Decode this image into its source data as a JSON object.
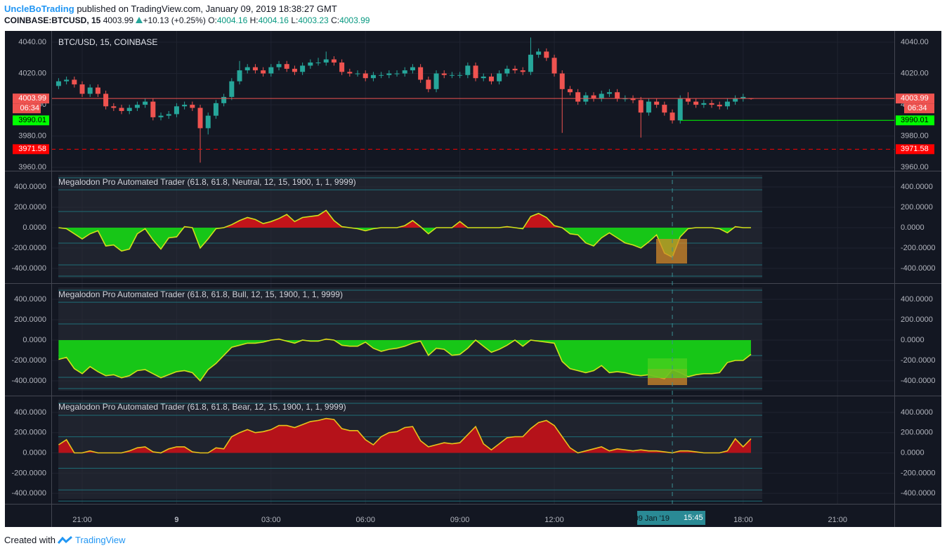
{
  "header": {
    "author": "UncleBoTrading",
    "published": "published on TradingView.com, January 09, 2019 18:38:27 GMT",
    "symbol": "COINBASE:BTCUSD, 15",
    "last": "4003.99",
    "change": "+10.13 (+0.25%)",
    "o_label": "O:",
    "o": "4004.16",
    "h_label": "H:",
    "h": "4004.16",
    "l_label": "L:",
    "l": "4003.23",
    "c_label": "C:",
    "c": "4003.99"
  },
  "footer": {
    "created": "Created with",
    "brand": "TradingView"
  },
  "chart_data": [
    {
      "type": "candlestick",
      "title": "BTC/USD, 15, COINBASE",
      "up_color": "#26a69a",
      "down_color": "#ef5350",
      "xlim": [
        -0.93,
        106.21
      ],
      "xticks": [
        {
          "value": 3,
          "label": "21:00"
        },
        {
          "value": 15,
          "label": "9"
        },
        {
          "value": 27,
          "label": "03:00"
        },
        {
          "value": 39,
          "label": "06:00"
        },
        {
          "value": 51,
          "label": "09:00"
        },
        {
          "value": 63,
          "label": "12:00"
        },
        {
          "value": 87,
          "label": "18:00"
        },
        {
          "value": 99,
          "label": "21:00"
        }
      ],
      "crosshair": {
        "date": "09 Jan '19",
        "time": "15:45"
      },
      "ylim": [
        3957.8,
        4047.2
      ],
      "yticks": [
        {
          "value": 3960,
          "label": "3960.00"
        },
        {
          "value": 3980,
          "label": "3980.00"
        },
        {
          "value": 4000,
          "label": "4000.00"
        },
        {
          "value": 4020,
          "label": "4020.00"
        },
        {
          "value": 4040,
          "label": "4040.00"
        }
      ],
      "countdown": "06:34",
      "price_lines": [
        {
          "value": 4003.99,
          "color": "#ef5350",
          "text_color": "#ffffff",
          "dashed": false
        },
        {
          "value": 3990.01,
          "color": "#00ff00",
          "text_color": "#000000",
          "dashed": false
        },
        {
          "value": 3971.58,
          "color": "#ff0000",
          "text_color": "#ffffff",
          "dashed": true
        }
      ],
      "open": [
        4012,
        4015,
        4016,
        4013,
        4007,
        4011,
        4007,
        3999,
        3998,
        3996,
        3998,
        4000,
        4002,
        3992,
        3993,
        3994,
        3999,
        4000,
        3998,
        3985,
        3993,
        4001,
        4005,
        4015,
        4022,
        4024,
        4022,
        4020,
        4024,
        4026,
        4023,
        4021,
        4025,
        4027,
        4027,
        4029,
        4027,
        4021,
        4020,
        4020,
        4017,
        4019,
        4019,
        4020,
        4020,
        4022,
        4024,
        4016,
        4010,
        4020,
        4019,
        4019,
        4019,
        4025,
        4017,
        4018,
        4015,
        4020,
        4023,
        4022,
        4021,
        4032,
        4034,
        4030,
        4020,
        4010,
        4008,
        4002,
        4006,
        4004,
        4007,
        4008,
        4004,
        4004,
        4003,
        3995,
        4002,
        4000,
        3995,
        3990,
        4004,
        4002,
        4000,
        4001,
        4000,
        3999,
        4002,
        4004,
        4004.16
      ],
      "high": [
        4017,
        4018,
        4018,
        4015,
        4013,
        4013,
        4009,
        4001,
        4000,
        4000,
        4002,
        4004,
        4004,
        3995,
        3996,
        4001,
        4002,
        4002,
        4000,
        3995,
        4003,
        4007,
        4017,
        4028,
        4026,
        4026,
        4024,
        4026,
        4028,
        4028,
        4025,
        4027,
        4029,
        4030,
        4034,
        4031,
        4029,
        4023,
        4022,
        4022,
        4021,
        4021,
        4022,
        4022,
        4024,
        4026,
        4026,
        4018,
        4022,
        4022,
        4021,
        4021,
        4027,
        4027,
        4020,
        4020,
        4022,
        4025,
        4025,
        4024,
        4043,
        4036,
        4036,
        4032,
        4022,
        4012,
        4010,
        4008,
        4008,
        4009,
        4010,
        4010,
        4006,
        4006,
        4005,
        4004,
        4004,
        4002,
        3997,
        4006,
        4008,
        4004,
        4003,
        4003,
        4002,
        4004,
        4006,
        4007,
        4004.16
      ],
      "low": [
        4010,
        4013,
        4011,
        4005,
        4005,
        4005,
        3997,
        3996,
        3994,
        3994,
        3996,
        3998,
        3990,
        3990,
        3991,
        3992,
        3997,
        3996,
        3963,
        3981,
        3991,
        3999,
        4003,
        4013,
        4020,
        4020,
        4018,
        4018,
        4022,
        4021,
        4019,
        4019,
        4023,
        4025,
        4025,
        4025,
        4019,
        4018,
        4018,
        4015,
        4015,
        4017,
        4017,
        4018,
        4018,
        4020,
        4014,
        4008,
        4008,
        4017,
        4017,
        4017,
        4017,
        4015,
        4015,
        4013,
        4013,
        4018,
        4020,
        4019,
        4019,
        4030,
        4028,
        4018,
        3982,
        4006,
        4000,
        4000,
        4002,
        4002,
        4005,
        4002,
        4002,
        4001,
        3979,
        3993,
        3998,
        3993,
        3988,
        3988,
        4000,
        3998,
        3998,
        3998,
        3997,
        3997,
        4000,
        4002,
        4003.23
      ],
      "close": [
        4015,
        4016,
        4013,
        4007,
        4011,
        4007,
        3999,
        3998,
        3996,
        3998,
        4000,
        4002,
        3992,
        3993,
        3994,
        3999,
        4000,
        3998,
        3985,
        3993,
        4001,
        4005,
        4015,
        4022,
        4024,
        4022,
        4020,
        4024,
        4026,
        4023,
        4021,
        4025,
        4027,
        4027,
        4029,
        4027,
        4021,
        4020,
        4020,
        4017,
        4019,
        4019,
        4020,
        4020,
        4022,
        4024,
        4016,
        4010,
        4020,
        4019,
        4019,
        4019,
        4025,
        4017,
        4018,
        4015,
        4020,
        4023,
        4022,
        4021,
        4032,
        4034,
        4030,
        4020,
        4010,
        4008,
        4002,
        4006,
        4004,
        4007,
        4008,
        4004,
        4004,
        4003,
        3995,
        4002,
        4000,
        3995,
        3990,
        4004,
        4002,
        4000,
        4001,
        4000,
        3999,
        4002,
        4004,
        4005,
        4003.99
      ]
    },
    {
      "type": "area",
      "title": "Megalodon Pro Automated Trader (61.8, 61.8, Neutral, 12, 15, 1900, 1, 1, 9999)",
      "line_color": "#cfe01a",
      "up_color": "#c3141a",
      "down_color": "#17c617",
      "level_color": "#1f6f78",
      "ylim": [
        -545,
        552
      ],
      "yticks": [
        {
          "value": -400,
          "label": "-400.0000"
        },
        {
          "value": -200,
          "label": "-200.0000"
        },
        {
          "value": 0,
          "label": "0.0000"
        },
        {
          "value": 200,
          "label": "200.0000"
        },
        {
          "value": 400,
          "label": "400.0000"
        }
      ],
      "levels": [
        490,
        372,
        159,
        -152,
        -366,
        -476
      ],
      "values": [
        0,
        -10,
        -60,
        -110,
        -60,
        -30,
        -180,
        -170,
        -230,
        -210,
        -60,
        -10,
        -120,
        -210,
        -100,
        -90,
        10,
        0,
        -200,
        -110,
        -10,
        0,
        30,
        70,
        100,
        80,
        40,
        60,
        90,
        130,
        60,
        100,
        110,
        120,
        170,
        70,
        10,
        0,
        -10,
        -30,
        -10,
        0,
        0,
        0,
        20,
        70,
        10,
        -60,
        0,
        0,
        0,
        60,
        0,
        0,
        0,
        0,
        0,
        10,
        0,
        -10,
        110,
        140,
        100,
        20,
        0,
        -60,
        -70,
        -150,
        -180,
        -100,
        -50,
        -100,
        -150,
        -170,
        -200,
        -140,
        -70,
        -250,
        -290,
        -90,
        -10,
        0,
        0,
        0,
        -10,
        -50,
        10,
        0,
        0
      ]
    },
    {
      "type": "area",
      "title": "Megalodon Pro Automated Trader (61.8, 61.8, Bull, 12, 15, 1900, 1, 1, 9999)",
      "line_color": "#cfe01a",
      "up_color": "#c3141a",
      "down_color": "#17c617",
      "level_color": "#1f6f78",
      "ylim": [
        -545,
        552
      ],
      "yticks": [
        {
          "value": -400,
          "label": "-400.0000"
        },
        {
          "value": -200,
          "label": "-200.0000"
        },
        {
          "value": 0,
          "label": "0.0000"
        },
        {
          "value": 200,
          "label": "200.0000"
        },
        {
          "value": 400,
          "label": "400.0000"
        }
      ],
      "levels": [
        490,
        372,
        159,
        -152,
        -366,
        -476
      ],
      "values": [
        -190,
        -170,
        -280,
        -330,
        -260,
        -310,
        -350,
        -340,
        -370,
        -350,
        -300,
        -290,
        -330,
        -370,
        -340,
        -310,
        -300,
        -320,
        -400,
        -290,
        -230,
        -150,
        -70,
        -50,
        -30,
        -30,
        -20,
        0,
        10,
        -10,
        -30,
        0,
        -10,
        -10,
        10,
        0,
        -50,
        -60,
        -60,
        -20,
        -80,
        -110,
        -90,
        -80,
        -60,
        -30,
        -10,
        -150,
        -80,
        -90,
        -150,
        -140,
        -80,
        0,
        -60,
        -120,
        -90,
        -50,
        0,
        -60,
        0,
        -10,
        -20,
        -30,
        -210,
        -280,
        -300,
        -320,
        -300,
        -250,
        -320,
        -310,
        -320,
        -340,
        -350,
        -340,
        -360,
        -380,
        -290,
        -320,
        -360,
        -340,
        -330,
        -330,
        -320,
        -220,
        -200,
        -200,
        -140
      ]
    },
    {
      "type": "area",
      "title": "Megalodon Pro Automated Trader (61.8, 61.8, Bear, 12, 15, 1900, 1, 1, 9999)",
      "line_color": "#e8c21a",
      "up_color": "#b5121a",
      "down_color": "#17c617",
      "level_color": "#1f6f78",
      "ylim": [
        -503,
        559
      ],
      "yticks": [
        {
          "value": -400,
          "label": "-400.0000"
        },
        {
          "value": -200,
          "label": "-200.0000"
        },
        {
          "value": 0,
          "label": "0.0000"
        },
        {
          "value": 200,
          "label": "200.0000"
        },
        {
          "value": 400,
          "label": "400.0000"
        }
      ],
      "levels": [
        490,
        372,
        159,
        -152,
        -366,
        -476
      ],
      "values": [
        80,
        130,
        0,
        0,
        20,
        0,
        0,
        0,
        0,
        20,
        50,
        60,
        10,
        0,
        40,
        60,
        60,
        10,
        0,
        0,
        50,
        40,
        160,
        200,
        230,
        200,
        210,
        230,
        270,
        270,
        250,
        280,
        310,
        320,
        340,
        330,
        240,
        220,
        220,
        130,
        80,
        160,
        200,
        210,
        250,
        260,
        120,
        60,
        80,
        100,
        90,
        100,
        180,
        260,
        90,
        30,
        90,
        150,
        160,
        160,
        240,
        300,
        320,
        270,
        160,
        50,
        0,
        20,
        40,
        60,
        20,
        40,
        30,
        20,
        30,
        20,
        20,
        10,
        0,
        20,
        20,
        10,
        0,
        0,
        0,
        20,
        140,
        60,
        140
      ]
    }
  ]
}
